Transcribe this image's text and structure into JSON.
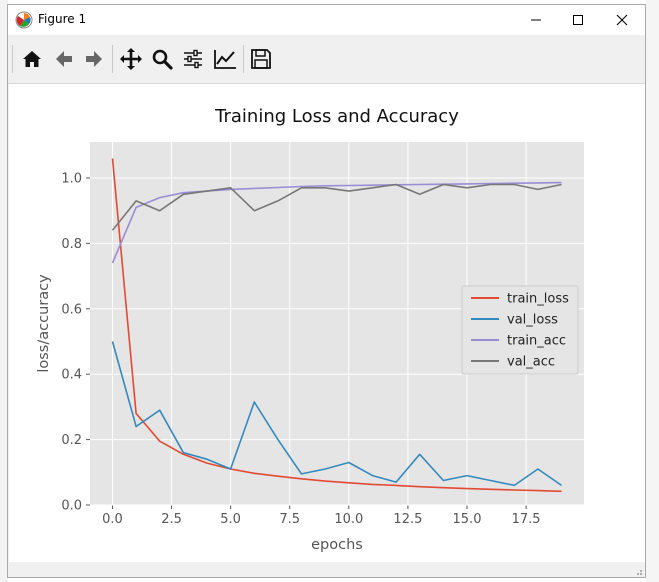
{
  "window": {
    "title": "Figure 1",
    "controls": {
      "minimize": "minimize-icon",
      "maximize": "maximize-icon",
      "close": "close-icon"
    }
  },
  "toolbar": {
    "buttons": [
      {
        "name": "home-button",
        "icon": "home-icon"
      },
      {
        "name": "back-button",
        "icon": "arrow-left-icon"
      },
      {
        "name": "forward-button",
        "icon": "arrow-right-icon"
      },
      {
        "name": "pan-button",
        "icon": "move-icon"
      },
      {
        "name": "zoom-button",
        "icon": "magnifier-icon"
      },
      {
        "name": "subplots-button",
        "icon": "sliders-icon"
      },
      {
        "name": "edit-axes-button",
        "icon": "line-chart-icon"
      },
      {
        "name": "save-button",
        "icon": "floppy-disk-icon"
      }
    ]
  },
  "chart_data": {
    "type": "line",
    "title": "Training Loss and Accuracy",
    "xlabel": "epochs",
    "ylabel": "loss/accuracy",
    "xlim": [
      -0.95,
      19.95
    ],
    "ylim": [
      0,
      1.11
    ],
    "xticks": [
      "0.0",
      "2.5",
      "5.0",
      "7.5",
      "10.0",
      "12.5",
      "15.0",
      "17.5"
    ],
    "xtick_values": [
      0,
      2.5,
      5,
      7.5,
      10,
      12.5,
      15,
      17.5
    ],
    "yticks": [
      "0.0",
      "0.2",
      "0.4",
      "0.6",
      "0.8",
      "1.0"
    ],
    "ytick_values": [
      0,
      0.2,
      0.4,
      0.6,
      0.8,
      1.0
    ],
    "grid": true,
    "legend_position": "center-right",
    "x": [
      0,
      1,
      2,
      3,
      4,
      5,
      6,
      7,
      8,
      9,
      10,
      11,
      12,
      13,
      14,
      15,
      16,
      17,
      18,
      19
    ],
    "series": [
      {
        "name": "train_loss",
        "color": "#e24a33",
        "values": [
          1.06,
          0.28,
          0.195,
          0.155,
          0.128,
          0.11,
          0.097,
          0.088,
          0.08,
          0.073,
          0.068,
          0.063,
          0.06,
          0.056,
          0.053,
          0.05,
          0.048,
          0.046,
          0.044,
          0.042
        ]
      },
      {
        "name": "val_loss",
        "color": "#348abd",
        "values": [
          0.5,
          0.24,
          0.29,
          0.16,
          0.14,
          0.11,
          0.315,
          0.2,
          0.095,
          0.11,
          0.13,
          0.09,
          0.07,
          0.155,
          0.075,
          0.09,
          0.075,
          0.06,
          0.11,
          0.06
        ]
      },
      {
        "name": "train_acc",
        "color": "#988ed5",
        "values": [
          0.74,
          0.91,
          0.94,
          0.955,
          0.96,
          0.965,
          0.968,
          0.971,
          0.974,
          0.976,
          0.977,
          0.978,
          0.979,
          0.98,
          0.981,
          0.982,
          0.983,
          0.984,
          0.985,
          0.986
        ]
      },
      {
        "name": "val_acc",
        "color": "#777777",
        "values": [
          0.84,
          0.93,
          0.9,
          0.95,
          0.96,
          0.97,
          0.9,
          0.93,
          0.97,
          0.97,
          0.96,
          0.97,
          0.98,
          0.95,
          0.98,
          0.97,
          0.98,
          0.98,
          0.965,
          0.98
        ]
      }
    ]
  },
  "colors": {
    "plot_background": "#e5e5e5",
    "grid": "#ffffff",
    "tick_text": "#555555"
  }
}
